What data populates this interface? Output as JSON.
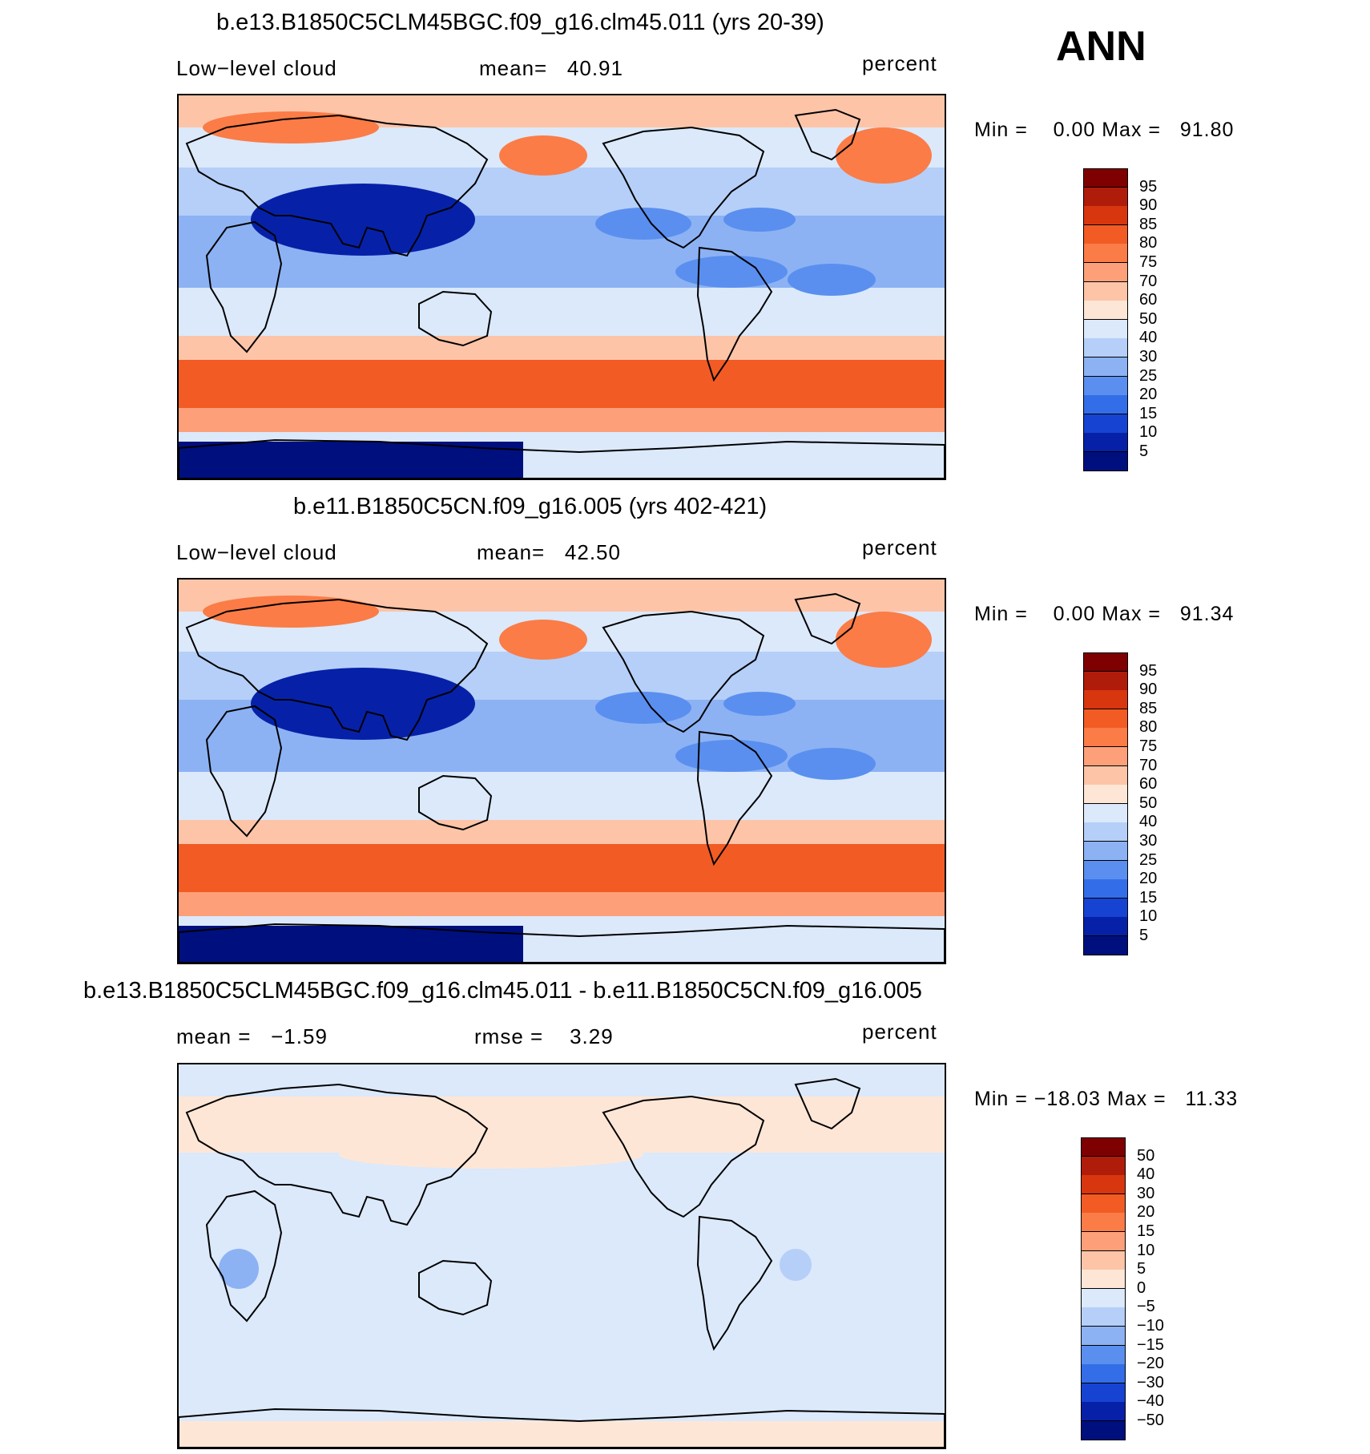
{
  "season": "ANN",
  "panels": [
    {
      "title": "b.e13.B1850C5CLM45BGC.f09_g16.clm45.011 (yrs 20-39)",
      "left_label": "Low−level cloud",
      "center_label": "mean=   40.91",
      "right_label": "percent",
      "minmax": "Min =    0.00 Max =   91.80",
      "colorbar": {
        "levels": [
          "95",
          "90",
          "85",
          "80",
          "75",
          "70",
          "60",
          "50",
          "40",
          "30",
          "25",
          "20",
          "15",
          "10",
          "5"
        ],
        "colors": [
          "#7f0000",
          "#b01c0a",
          "#d8360f",
          "#f25b24",
          "#fb7c46",
          "#fda07a",
          "#fdc4a8",
          "#fee6d6",
          "#dbe9fb",
          "#b5cff8",
          "#8cb2f4",
          "#5a8fef",
          "#336ee8",
          "#1743d2",
          "#0621a8",
          "#000f7e"
        ]
      },
      "map_type": "abs"
    },
    {
      "title": "b.e11.B1850C5CN.f09_g16.005 (yrs 402-421)",
      "left_label": "Low−level cloud",
      "center_label": "mean=   42.50",
      "right_label": "percent",
      "minmax": "Min =    0.00 Max =   91.34",
      "colorbar": {
        "levels": [
          "95",
          "90",
          "85",
          "80",
          "75",
          "70",
          "60",
          "50",
          "40",
          "30",
          "25",
          "20",
          "15",
          "10",
          "5"
        ],
        "colors": [
          "#7f0000",
          "#b01c0a",
          "#d8360f",
          "#f25b24",
          "#fb7c46",
          "#fda07a",
          "#fdc4a8",
          "#fee6d6",
          "#dbe9fb",
          "#b5cff8",
          "#8cb2f4",
          "#5a8fef",
          "#336ee8",
          "#1743d2",
          "#0621a8",
          "#000f7e"
        ]
      },
      "map_type": "abs"
    },
    {
      "title": "b.e13.B1850C5CLM45BGC.f09_g16.clm45.011 - b.e11.B1850C5CN.f09_g16.005",
      "left_label": "mean =   −1.59",
      "center_label": "rmse =    3.29",
      "right_label": "percent",
      "minmax": "Min = −18.03 Max =   11.33",
      "colorbar": {
        "levels": [
          "50",
          "40",
          "30",
          "20",
          "15",
          "10",
          "5",
          "0",
          "−5",
          "−10",
          "−15",
          "−20",
          "−30",
          "−40",
          "−50"
        ],
        "colors": [
          "#7f0000",
          "#b01c0a",
          "#d8360f",
          "#f25b24",
          "#fb7c46",
          "#fda07a",
          "#fdc4a8",
          "#fee6d6",
          "#dbe9fb",
          "#b5cff8",
          "#8cb2f4",
          "#5a8fef",
          "#336ee8",
          "#1743d2",
          "#0621a8",
          "#000f7e"
        ]
      },
      "map_type": "diff"
    }
  ]
}
